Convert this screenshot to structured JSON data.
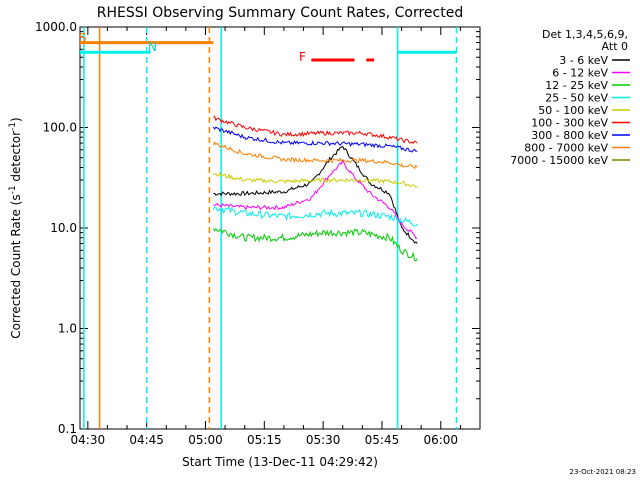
{
  "chart_data": {
    "type": "line",
    "title": "RHESSI Observing Summary Count Rates, Corrected",
    "xlabel": "Start Time (13-Dec-11 04:29:42)",
    "ylabel": "Corrected Count Rate (s",
    "ylabel_sup1": "-1",
    "ylabel_mid": " detector",
    "ylabel_sup2": "-1",
    "ylabel_end": ")",
    "yscale": "log",
    "ylim": [
      0.1,
      1000
    ],
    "y_ticks": [
      0.1,
      1,
      10,
      100,
      1000
    ],
    "y_tick_labels": [
      "0.1",
      "1.0",
      "10.0",
      "100.0",
      "1000.0"
    ],
    "xlim": [
      "04:28",
      "06:10"
    ],
    "x_ticks": [
      "04:30",
      "04:45",
      "05:00",
      "05:15",
      "05:30",
      "05:45",
      "06:00"
    ],
    "legend_header": [
      "Det 1,3,4,5,6,9,",
      "Att 0"
    ],
    "legend_position": "right",
    "series": [
      {
        "name": "3 - 6 keV",
        "color": "#000000",
        "x": [
          "05:02",
          "05:10",
          "05:20",
          "05:27",
          "05:32",
          "05:35",
          "05:38",
          "05:42",
          "05:47",
          "05:50",
          "05:54"
        ],
        "y": [
          22,
          22,
          23,
          28,
          50,
          65,
          45,
          28,
          22,
          10,
          7
        ]
      },
      {
        "name": "6 - 12 keV",
        "color": "#ff00ff",
        "x": [
          "05:02",
          "05:10",
          "05:20",
          "05:27",
          "05:32",
          "05:35",
          "05:38",
          "05:42",
          "05:47",
          "05:50",
          "05:54"
        ],
        "y": [
          17,
          16,
          16,
          20,
          35,
          45,
          32,
          22,
          16,
          11,
          8
        ]
      },
      {
        "name": "12 - 25 keV",
        "color": "#00cc00",
        "x": [
          "05:02",
          "05:10",
          "05:20",
          "05:30",
          "05:40",
          "05:47",
          "05:50",
          "05:54"
        ],
        "y": [
          10,
          8,
          8,
          9,
          9,
          8,
          6,
          5
        ]
      },
      {
        "name": "25 - 50 keV",
        "color": "#00eeee",
        "x": [
          "05:02",
          "05:10",
          "05:20",
          "05:30",
          "05:40",
          "05:47",
          "05:50",
          "05:54"
        ],
        "y": [
          16,
          14,
          13,
          14,
          14,
          13,
          12,
          11
        ]
      },
      {
        "name": "50 - 100 keV",
        "color": "#cccc00",
        "x": [
          "05:02",
          "05:10",
          "05:20",
          "05:30",
          "05:40",
          "05:47",
          "05:50",
          "05:54"
        ],
        "y": [
          35,
          30,
          29,
          30,
          30,
          29,
          28,
          26
        ]
      },
      {
        "name": "100 - 300 keV",
        "color": "#ff0000",
        "x": [
          "05:02",
          "05:10",
          "05:20",
          "05:30",
          "05:40",
          "05:47",
          "05:50",
          "05:54"
        ],
        "y": [
          125,
          100,
          85,
          88,
          88,
          80,
          75,
          70
        ]
      },
      {
        "name": "300 - 800 keV",
        "color": "#0000ff",
        "x": [
          "05:02",
          "05:10",
          "05:20",
          "05:30",
          "05:40",
          "05:47",
          "05:50",
          "05:54"
        ],
        "y": [
          100,
          80,
          70,
          70,
          68,
          65,
          62,
          58
        ]
      },
      {
        "name": "800 - 7000 keV",
        "color": "#ff8000",
        "x": [
          "05:02",
          "05:10",
          "05:20",
          "05:30",
          "05:40",
          "05:47",
          "05:50",
          "05:54"
        ],
        "y": [
          70,
          55,
          48,
          47,
          47,
          45,
          42,
          40
        ]
      },
      {
        "name": "7000 - 15000 keV",
        "color": "#808000",
        "x": [],
        "y": []
      }
    ],
    "annotations": {
      "S_label": "S",
      "N_label": "N",
      "F_label": "F",
      "timestamp": "23-Oct-2021 08:23"
    },
    "flag_bars": [
      {
        "label": "S",
        "color": "#ff8000",
        "start": "04:28",
        "end": "05:02",
        "y": 700
      },
      {
        "label": "N",
        "color": "#00eeee",
        "start": "04:28",
        "end": "04:46",
        "y": 560
      },
      {
        "label": "N",
        "color": "#00eeee",
        "start": "05:49",
        "end": "06:04",
        "y": 560
      },
      {
        "label": "F",
        "color": "#ff0000",
        "start": "05:27",
        "end": "05:38",
        "y": 470
      },
      {
        "label": "F",
        "color": "#ff0000",
        "start": "05:41",
        "end": "05:43",
        "y": 470
      }
    ],
    "vertical_markers": [
      {
        "time": "04:29",
        "color": "#00eeee",
        "style": "solid"
      },
      {
        "time": "04:33",
        "color": "#ff8000",
        "style": "solid"
      },
      {
        "time": "04:45",
        "color": "#00eeee",
        "style": "dashed"
      },
      {
        "time": "05:01",
        "color": "#ff8000",
        "style": "dashed"
      },
      {
        "time": "05:04",
        "color": "#00eeee",
        "style": "solid"
      },
      {
        "time": "05:49",
        "color": "#00eeee",
        "style": "solid"
      },
      {
        "time": "06:04",
        "color": "#00eeee",
        "style": "dashed"
      }
    ]
  }
}
